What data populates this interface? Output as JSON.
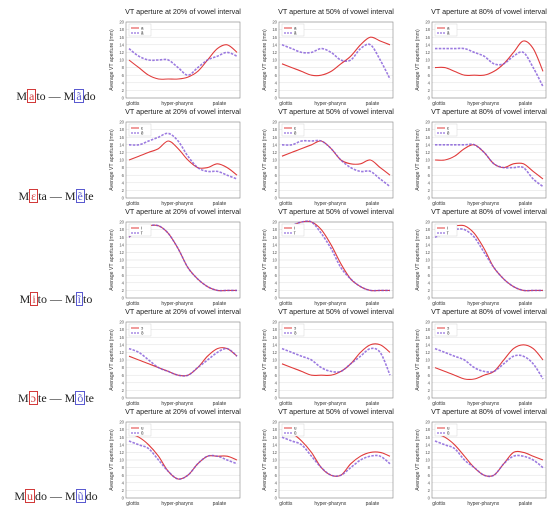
{
  "colors": {
    "oral": "#e03b3b",
    "nasal": "#7b4fd6",
    "grid": "#dddddd",
    "axis": "#888888"
  },
  "row_labels": [
    {
      "pre": "M",
      "a": "a",
      "mid": "to — M",
      "b": "ã",
      "post": "do"
    },
    {
      "pre": "M",
      "a": "ɛ",
      "mid": "ta — M",
      "b": "ẽ",
      "post": "te"
    },
    {
      "pre": "M",
      "a": "i",
      "mid": "to — M",
      "b": "ĩ",
      "post": "to"
    },
    {
      "pre": "M",
      "a": "ɔ",
      "mid": "te — M",
      "b": "õ",
      "post": "te"
    },
    {
      "pre": "M",
      "a": "u",
      "mid": "do — M",
      "b": "ũ",
      "post": "do"
    }
  ],
  "chart_data": [
    {
      "type": "line",
      "title": "VT aperture at 20% of vowel interval",
      "ylabel": "Average VT aperture (mm)",
      "ylim": [
        0,
        20
      ],
      "yticks": [
        0,
        2,
        4,
        6,
        8,
        10,
        12,
        14,
        16,
        18,
        20
      ],
      "xticklabels": [
        "glottis",
        "hyper-pharynx",
        "palate"
      ],
      "grid": true,
      "legend": "top-left",
      "series": [
        {
          "name": "a",
          "values": [
            10,
            8,
            6,
            5,
            5,
            5,
            5.5,
            7,
            10,
            13,
            14,
            12
          ]
        },
        {
          "name": "ã",
          "values": [
            13,
            11,
            10,
            10,
            10,
            8,
            6,
            8,
            10,
            11,
            12,
            11
          ]
        }
      ]
    },
    {
      "type": "line",
      "title": "VT aperture at 50% of vowel interval",
      "ylabel": "Average VT aperture (mm)",
      "ylim": [
        0,
        20
      ],
      "yticks": [
        0,
        2,
        4,
        6,
        8,
        10,
        12,
        14,
        16,
        18,
        20
      ],
      "xticklabels": [
        "glottis",
        "hyper-pharynx",
        "palate"
      ],
      "grid": true,
      "legend": "top-left",
      "series": [
        {
          "name": "a",
          "values": [
            9,
            8,
            7,
            6,
            6,
            7,
            9,
            11,
            14,
            16,
            15,
            14
          ]
        },
        {
          "name": "ã",
          "values": [
            14,
            13,
            12,
            12,
            13,
            12,
            10,
            10,
            13,
            14,
            10,
            5
          ]
        }
      ]
    },
    {
      "type": "line",
      "title": "VT aperture at 80% of vowel interval",
      "ylabel": "Average VT aperture (mm)",
      "ylim": [
        0,
        20
      ],
      "yticks": [
        0,
        2,
        4,
        6,
        8,
        10,
        12,
        14,
        16,
        18,
        20
      ],
      "xticklabels": [
        "glottis",
        "hyper-pharynx",
        "palate"
      ],
      "grid": true,
      "legend": "top-left",
      "series": [
        {
          "name": "a",
          "values": [
            8,
            8,
            7,
            6,
            6,
            6,
            7,
            9,
            12,
            15,
            13,
            7
          ]
        },
        {
          "name": "ã",
          "values": [
            13,
            13,
            13,
            13,
            12,
            11,
            9,
            9,
            11,
            12,
            8,
            3
          ]
        }
      ]
    },
    {
      "type": "line",
      "title": "VT aperture at 20% of vowel interval",
      "ylabel": "Average VT aperture (mm)",
      "ylim": [
        0,
        20
      ],
      "yticks": [
        0,
        2,
        4,
        6,
        8,
        10,
        12,
        14,
        16,
        18,
        20
      ],
      "xticklabels": [
        "glottis",
        "hyper-pharynx",
        "palate"
      ],
      "grid": true,
      "legend": "top-left",
      "series": [
        {
          "name": "ɛ",
          "values": [
            10,
            11,
            12,
            13,
            15,
            13,
            10,
            8,
            8,
            9,
            8,
            6
          ]
        },
        {
          "name": "ẽ",
          "values": [
            14,
            14,
            15,
            16,
            17,
            15,
            11,
            8,
            7,
            7,
            6,
            5
          ]
        }
      ]
    },
    {
      "type": "line",
      "title": "VT aperture at 50% of vowel interval",
      "ylabel": "Average VT aperture (mm)",
      "ylim": [
        0,
        20
      ],
      "yticks": [
        0,
        2,
        4,
        6,
        8,
        10,
        12,
        14,
        16,
        18,
        20
      ],
      "xticklabels": [
        "glottis",
        "hyper-pharynx",
        "palate"
      ],
      "grid": true,
      "legend": "top-left",
      "series": [
        {
          "name": "ɛ",
          "values": [
            11,
            12,
            13,
            14,
            15,
            13,
            10,
            9,
            9,
            10,
            8,
            6
          ]
        },
        {
          "name": "ẽ",
          "values": [
            14,
            14,
            15,
            15,
            15,
            13,
            10,
            8,
            7,
            7,
            5,
            3
          ]
        }
      ]
    },
    {
      "type": "line",
      "title": "VT aperture at 80% of vowel interval",
      "ylabel": "Average VT aperture (mm)",
      "ylim": [
        0,
        20
      ],
      "yticks": [
        0,
        2,
        4,
        6,
        8,
        10,
        12,
        14,
        16,
        18,
        20
      ],
      "xticklabels": [
        "glottis",
        "hyper-pharynx",
        "palate"
      ],
      "grid": true,
      "legend": "top-left",
      "series": [
        {
          "name": "ɛ",
          "values": [
            10,
            10,
            11,
            13,
            14,
            12,
            9,
            8,
            9,
            9,
            7,
            5
          ]
        },
        {
          "name": "ẽ",
          "values": [
            14,
            14,
            14,
            14,
            14,
            12,
            9,
            8,
            8,
            8,
            5,
            3
          ]
        }
      ]
    },
    {
      "type": "line",
      "title": "VT aperture at 20% of vowel interval",
      "ylabel": "Average VT aperture (mm)",
      "ylim": [
        0,
        20
      ],
      "yticks": [
        0,
        2,
        4,
        6,
        8,
        10,
        12,
        14,
        16,
        18,
        20
      ],
      "xticklabels": [
        "glottis",
        "hyper-pharynx",
        "palate"
      ],
      "grid": true,
      "legend": "top-left",
      "series": [
        {
          "name": "i",
          "values": [
            16,
            18,
            19,
            19,
            17,
            13,
            8,
            5,
            3,
            2,
            2,
            2
          ]
        },
        {
          "name": "ĩ",
          "values": [
            16,
            18,
            19,
            19,
            17,
            13,
            8,
            5,
            3,
            2,
            2,
            2
          ]
        }
      ]
    },
    {
      "type": "line",
      "title": "VT aperture at 50% of vowel interval",
      "ylabel": "Average VT aperture (mm)",
      "ylim": [
        0,
        20
      ],
      "yticks": [
        0,
        2,
        4,
        6,
        8,
        10,
        12,
        14,
        16,
        18,
        20
      ],
      "xticklabels": [
        "glottis",
        "hyper-pharynx",
        "palate"
      ],
      "grid": true,
      "legend": "top-left",
      "series": [
        {
          "name": "i",
          "values": [
            18,
            19,
            20,
            20,
            18,
            14,
            9,
            5,
            3,
            2,
            2,
            2
          ]
        },
        {
          "name": "ĩ",
          "values": [
            17,
            19,
            20,
            20,
            17,
            13,
            8,
            5,
            3,
            2,
            2,
            2
          ]
        }
      ]
    },
    {
      "type": "line",
      "title": "VT aperture at 80% of vowel interval",
      "ylabel": "Average VT aperture (mm)",
      "ylim": [
        0,
        20
      ],
      "yticks": [
        0,
        2,
        4,
        6,
        8,
        10,
        12,
        14,
        16,
        18,
        20
      ],
      "xticklabels": [
        "glottis",
        "hyper-pharynx",
        "palate"
      ],
      "grid": true,
      "legend": "top-left",
      "series": [
        {
          "name": "i",
          "values": [
            18,
            19,
            19,
            19,
            17,
            13,
            8,
            5,
            3,
            2,
            2,
            2
          ]
        },
        {
          "name": "ĩ",
          "values": [
            16,
            17,
            18,
            18,
            16,
            12,
            8,
            5,
            3,
            2,
            2,
            2
          ]
        }
      ]
    },
    {
      "type": "line",
      "title": "VT aperture at 20% of vowel interval",
      "ylabel": "Average VT aperture (mm)",
      "ylim": [
        0,
        20
      ],
      "yticks": [
        0,
        2,
        4,
        6,
        8,
        10,
        12,
        14,
        16,
        18,
        20
      ],
      "xticklabels": [
        "glottis",
        "hyper-pharynx",
        "palate"
      ],
      "grid": true,
      "legend": "top-left",
      "series": [
        {
          "name": "ɔ",
          "values": [
            11,
            10,
            9,
            8,
            7,
            6,
            6,
            8,
            11,
            13,
            13,
            11
          ]
        },
        {
          "name": "õ",
          "values": [
            13,
            12,
            10,
            8,
            7,
            6,
            6,
            8,
            10,
            12,
            13,
            11
          ]
        }
      ]
    },
    {
      "type": "line",
      "title": "VT aperture at 50% of vowel interval",
      "ylabel": "Average VT aperture (mm)",
      "ylim": [
        0,
        20
      ],
      "yticks": [
        0,
        2,
        4,
        6,
        8,
        10,
        12,
        14,
        16,
        18,
        20
      ],
      "xticklabels": [
        "glottis",
        "hyper-pharynx",
        "palate"
      ],
      "grid": true,
      "legend": "top-left",
      "series": [
        {
          "name": "ɔ",
          "values": [
            9,
            8,
            7,
            6,
            6,
            6,
            7,
            9,
            12,
            14,
            14,
            12
          ]
        },
        {
          "name": "õ",
          "values": [
            13,
            12,
            11,
            10,
            8,
            7,
            7,
            9,
            11,
            13,
            12,
            6
          ]
        }
      ]
    },
    {
      "type": "line",
      "title": "VT aperture at 80% of vowel interval",
      "ylabel": "Average VT aperture (mm)",
      "ylim": [
        0,
        20
      ],
      "yticks": [
        0,
        2,
        4,
        6,
        8,
        10,
        12,
        14,
        16,
        18,
        20
      ],
      "xticklabels": [
        "glottis",
        "hyper-pharynx",
        "palate"
      ],
      "grid": true,
      "legend": "top-left",
      "series": [
        {
          "name": "ɔ",
          "values": [
            8,
            7,
            6,
            5,
            5,
            6,
            7,
            10,
            13,
            14,
            13,
            10
          ]
        },
        {
          "name": "õ",
          "values": [
            13,
            12,
            11,
            10,
            8,
            7,
            7,
            9,
            11,
            11,
            9,
            5
          ]
        }
      ]
    },
    {
      "type": "line",
      "title": "VT aperture at 20% of vowel interval",
      "ylabel": "Average VT aperture (mm)",
      "ylim": [
        0,
        20
      ],
      "yticks": [
        0,
        2,
        4,
        6,
        8,
        10,
        12,
        14,
        16,
        18,
        20
      ],
      "xticklabels": [
        "glottis",
        "hyper-pharynx",
        "palate"
      ],
      "grid": true,
      "legend": "top-left",
      "series": [
        {
          "name": "u",
          "values": [
            17,
            16,
            14,
            11,
            7,
            5,
            6,
            9,
            11,
            11,
            11,
            10
          ]
        },
        {
          "name": "ũ",
          "values": [
            15,
            14,
            13,
            10,
            7,
            5,
            6,
            9,
            11,
            11,
            10,
            9
          ]
        }
      ]
    },
    {
      "type": "line",
      "title": "VT aperture at 50% of vowel interval",
      "ylabel": "Average VT aperture (mm)",
      "ylim": [
        0,
        20
      ],
      "yticks": [
        0,
        2,
        4,
        6,
        8,
        10,
        12,
        14,
        16,
        18,
        20
      ],
      "xticklabels": [
        "glottis",
        "hyper-pharynx",
        "palate"
      ],
      "grid": true,
      "legend": "top-left",
      "series": [
        {
          "name": "u",
          "values": [
            18,
            17,
            15,
            12,
            8,
            6,
            6,
            9,
            11,
            12,
            12,
            11
          ]
        },
        {
          "name": "ũ",
          "values": [
            16,
            15,
            14,
            11,
            8,
            6,
            6,
            8,
            10,
            11,
            11,
            9
          ]
        }
      ]
    },
    {
      "type": "line",
      "title": "VT aperture at 80% of vowel interval",
      "ylabel": "Average VT aperture (mm)",
      "ylim": [
        0,
        20
      ],
      "yticks": [
        0,
        2,
        4,
        6,
        8,
        10,
        12,
        14,
        16,
        18,
        20
      ],
      "xticklabels": [
        "glottis",
        "hyper-pharynx",
        "palate"
      ],
      "grid": true,
      "legend": "top-left",
      "series": [
        {
          "name": "u",
          "values": [
            17,
            16,
            14,
            11,
            8,
            6,
            6,
            9,
            12,
            12,
            11,
            10
          ]
        },
        {
          "name": "ũ",
          "values": [
            15,
            14,
            13,
            10,
            8,
            6,
            6,
            9,
            11,
            11,
            10,
            8
          ]
        }
      ]
    }
  ]
}
